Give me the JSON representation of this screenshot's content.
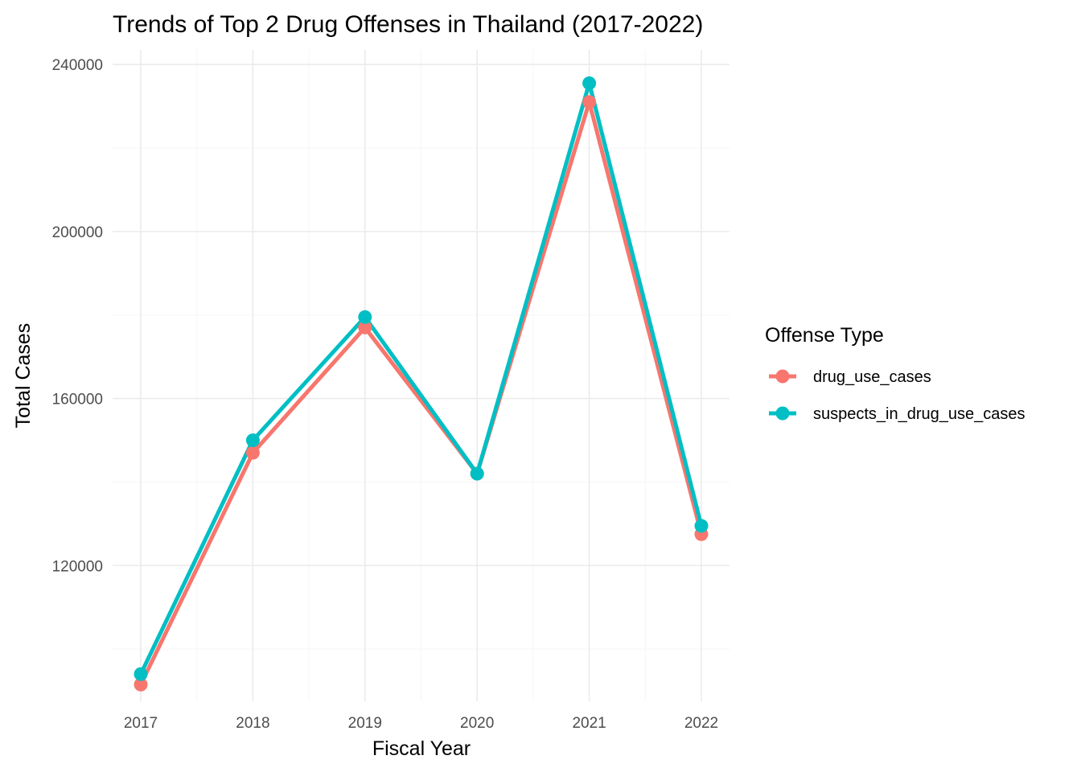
{
  "chart_data": {
    "type": "line",
    "title": "Trends of Top 2 Drug Offenses in Thailand (2017-2022)",
    "xlabel": "Fiscal Year",
    "ylabel": "Total Cases",
    "x": [
      "2017",
      "2018",
      "2019",
      "2020",
      "2021",
      "2022"
    ],
    "y_ticks": [
      "120000",
      "160000",
      "200000",
      "240000"
    ],
    "ylim": [
      87500,
      243500
    ],
    "grid": true,
    "legend": {
      "title": "Offense Type",
      "placement": "right"
    },
    "series": [
      {
        "name": "drug_use_cases",
        "color": "#F8766D",
        "values": [
          91500,
          147000,
          177000,
          142000,
          231000,
          127500
        ]
      },
      {
        "name": "suspects_in_drug_use_cases",
        "color": "#00BFC4",
        "values": [
          94000,
          150000,
          179500,
          142000,
          235500,
          129500
        ]
      }
    ]
  }
}
